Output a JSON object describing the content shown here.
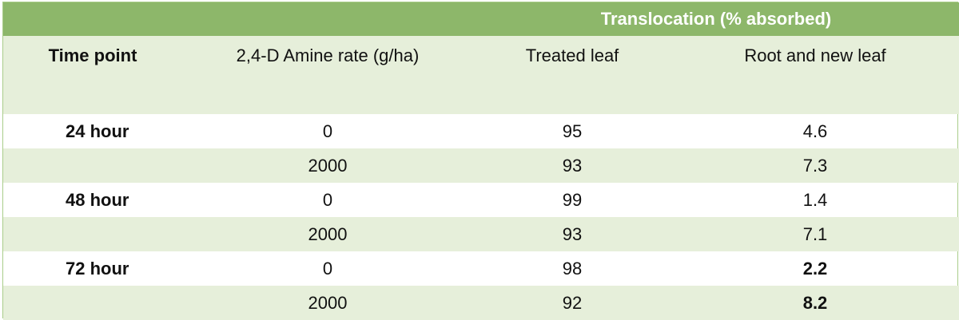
{
  "table": {
    "group_header": "Translocation (% absorbed)",
    "columns": [
      "Time point",
      "2,4-D Amine rate (g/ha)",
      "Treated leaf",
      "Root and new leaf"
    ],
    "rows": [
      {
        "time": "24 hour",
        "rate": "0",
        "treated": "95",
        "root": "4.6"
      },
      {
        "time": "",
        "rate": "2000",
        "treated": "93",
        "root": "7.3"
      },
      {
        "time": "48 hour",
        "rate": "0",
        "treated": "99",
        "root": "1.4"
      },
      {
        "time": "",
        "rate": "2000",
        "treated": "93",
        "root": "7.1"
      },
      {
        "time": "72 hour",
        "rate": "0",
        "treated": "98",
        "root": "2.2"
      },
      {
        "time": "",
        "rate": "2000",
        "treated": "92",
        "root": "8.2"
      }
    ]
  }
}
